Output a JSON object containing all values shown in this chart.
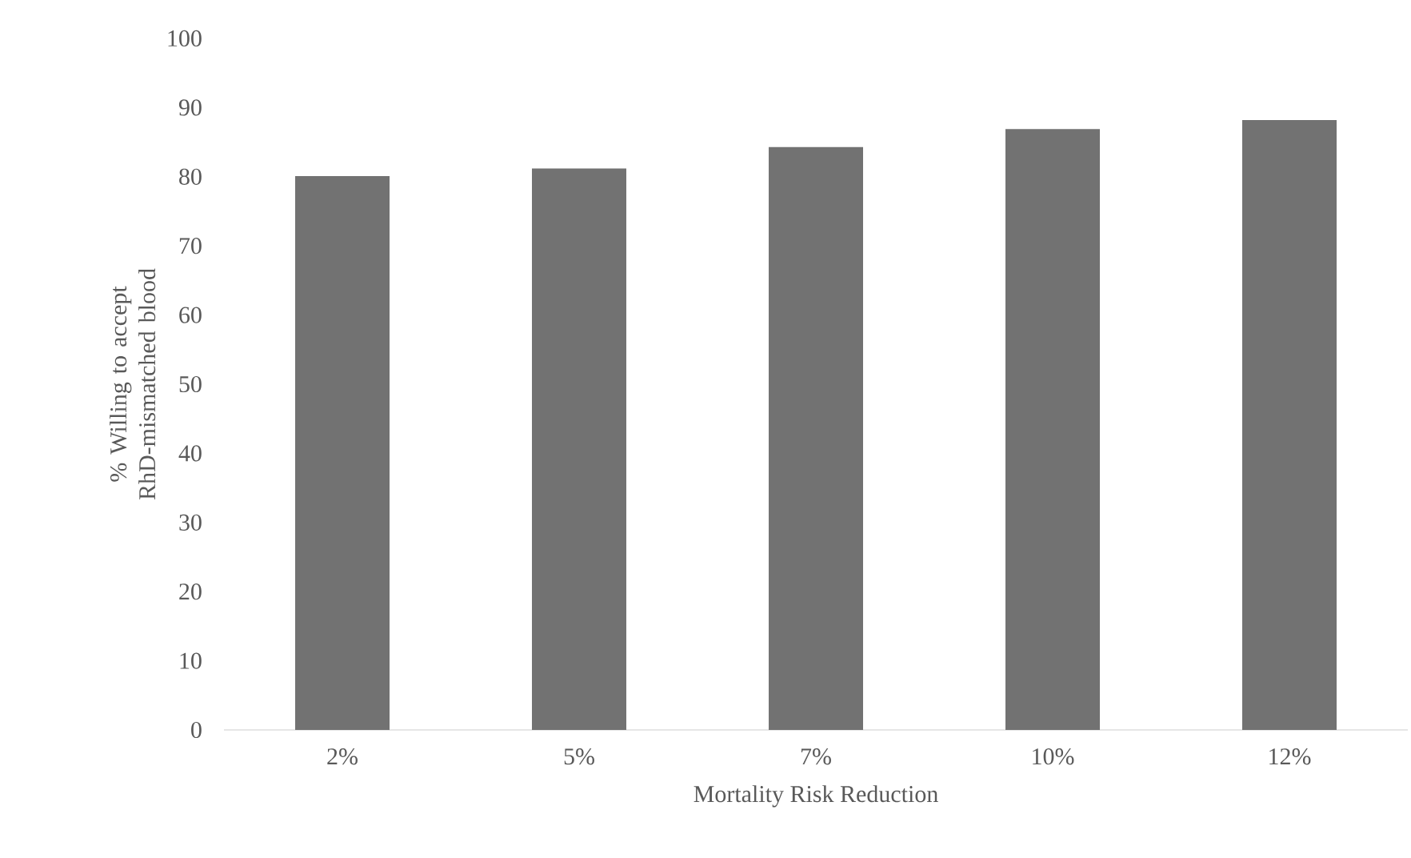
{
  "chart_data": {
    "type": "bar",
    "xlabel": "Mortality Risk Reduction",
    "ylabel": "% Willing to accept RhD-mismatched blood",
    "categories": [
      "2%",
      "5%",
      "7%",
      "10%",
      "12%"
    ],
    "values": [
      80.1,
      81.2,
      84.3,
      86.9,
      88.2
    ],
    "color": "#727272",
    "ylim": [
      0,
      100
    ],
    "yticks": [
      0,
      10,
      20,
      30,
      40,
      50,
      60,
      70,
      80,
      90,
      100
    ]
  }
}
